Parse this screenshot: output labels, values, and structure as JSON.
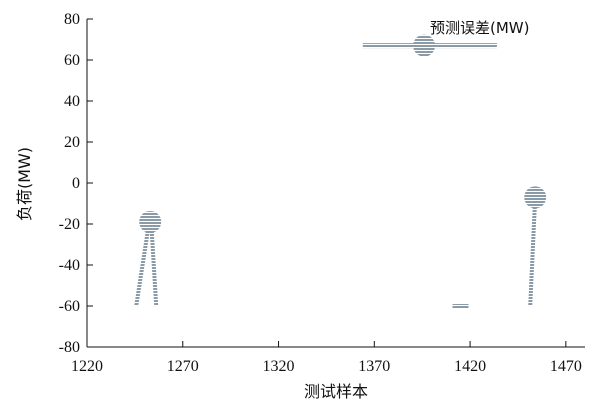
{
  "chart_data": {
    "type": "scatter",
    "xlabel": "测试样本",
    "ylabel": "负荷(MW)",
    "xlim": [
      1220,
      1480
    ],
    "ylim": [
      -80,
      80
    ],
    "xticks": [
      1220,
      1270,
      1320,
      1370,
      1420,
      1470
    ],
    "yticks": [
      80,
      60,
      40,
      20,
      0,
      -20,
      -40,
      -60,
      -80
    ],
    "legend": {
      "position": "top-right",
      "label": "预测误差(MW)"
    },
    "color": "#8a9aa6",
    "series": [
      {
        "name": "预测误差(MW)",
        "stems": [
          {
            "x": 1253,
            "base": -60,
            "top": -19
          },
          {
            "x": 1454,
            "base": -60,
            "top": -7
          },
          {
            "x": 1415,
            "base": -60,
            "top": -60
          }
        ]
      }
    ]
  }
}
